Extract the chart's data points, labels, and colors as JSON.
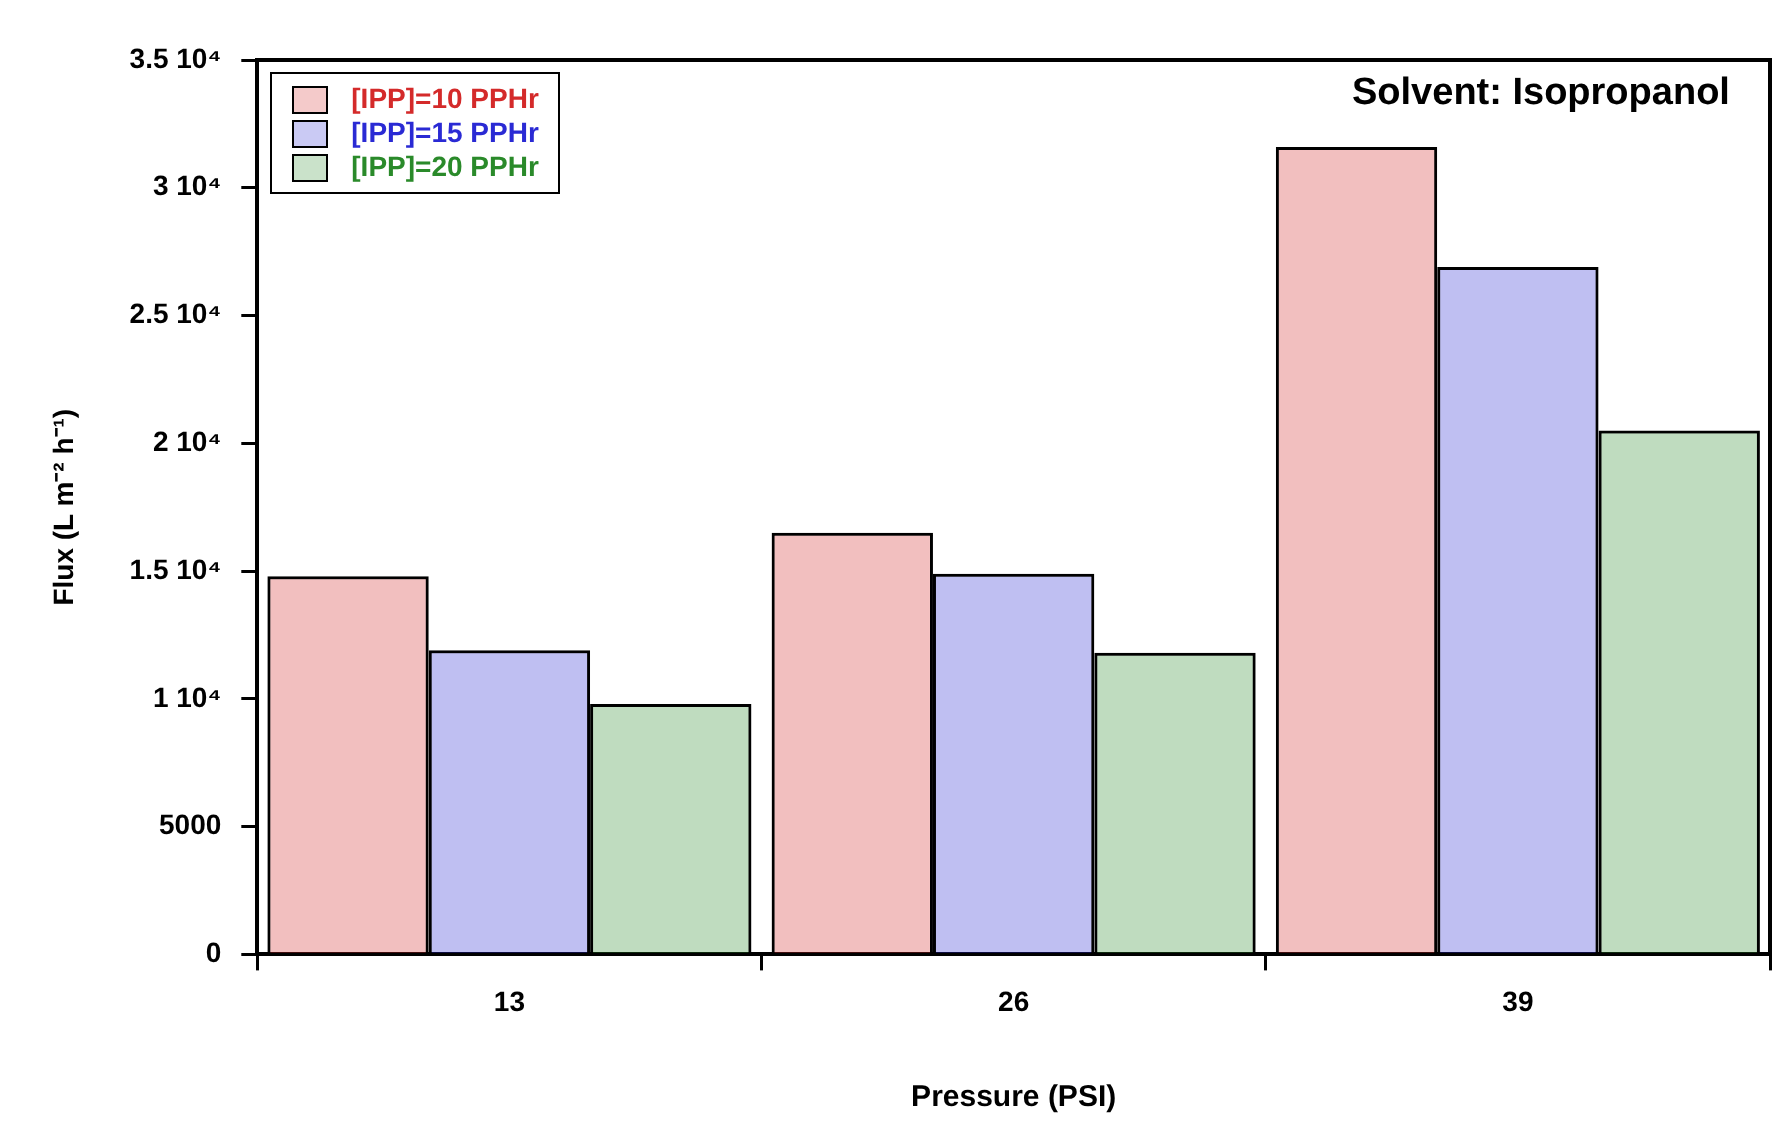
{
  "chart_data": {
    "type": "bar",
    "xlabel": "Pressure (PSI)",
    "ylabel": "Flux (L m⁻² h⁻¹)",
    "categories": [
      "13",
      "26",
      "39"
    ],
    "series": [
      {
        "name": "[IPP]=10 PPHr",
        "color": "#d42a2a",
        "values": [
          14800,
          16500,
          31600
        ]
      },
      {
        "name": "[IPP]=15 PPHr",
        "color": "#2a2ad4",
        "values": [
          11900,
          14900,
          26900
        ]
      },
      {
        "name": "[IPP]=20 PPHr",
        "color": "#2a8a2a",
        "values": [
          9800,
          11800,
          20500
        ]
      }
    ],
    "ylim": [
      0,
      35000
    ],
    "yticks": [
      0,
      5000,
      {
        "value": 10000,
        "label": "1 10⁴"
      },
      {
        "value": 15000,
        "label": "1.5 10⁴"
      },
      {
        "value": 20000,
        "label": "2 10⁴"
      },
      {
        "value": 25000,
        "label": "2.5 10⁴"
      },
      {
        "value": 30000,
        "label": "3 10⁴"
      },
      {
        "value": 35000,
        "label": "3.5 10⁴"
      }
    ],
    "annotations": [
      "Solvent: Isopropanol"
    ],
    "legend": "top left",
    "grid": false
  }
}
